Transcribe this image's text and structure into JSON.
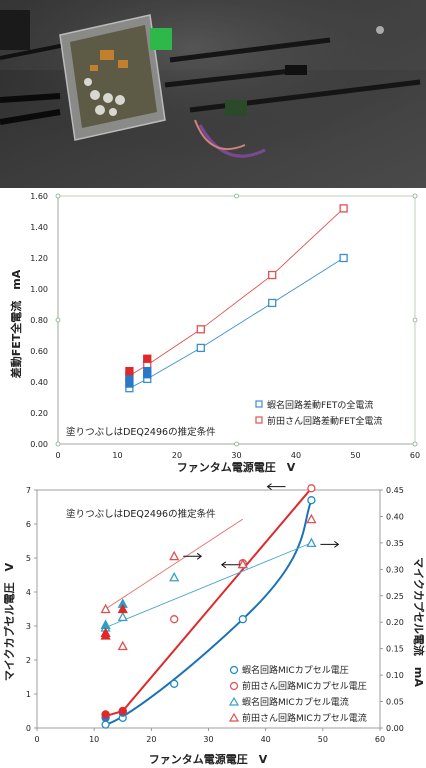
{
  "photo": {
    "description_icon": "circuit-photo"
  },
  "chart_data": [
    {
      "type": "scatter",
      "title": "",
      "xlabel": "ファンタム電源電圧　V",
      "ylabel": "差動FET全電流　mA",
      "xlim": [
        0,
        60
      ],
      "ylim": [
        0,
        1.6
      ],
      "xticks": [
        "0",
        "10",
        "20",
        "30",
        "40",
        "50",
        "60"
      ],
      "yticks": [
        "0.00",
        "0.20",
        "0.40",
        "0.60",
        "0.80",
        "1.00",
        "1.20",
        "1.40",
        "1.60"
      ],
      "grid": false,
      "annotation": "塗りつぶしはDEQ2496の推定条件",
      "legend_position": "right",
      "series": [
        {
          "name": "蝦名回路差動FETの全電流",
          "color": "#3a8fd1",
          "marker": "square-open",
          "x": [
            12,
            15,
            24,
            36,
            48
          ],
          "y": [
            0.36,
            0.42,
            0.62,
            0.91,
            1.2
          ]
        },
        {
          "name": "前田さん回路差動FET全電流",
          "color": "#e05050",
          "marker": "square-open",
          "x": [
            12,
            15,
            24,
            36,
            48
          ],
          "y": [
            0.44,
            0.51,
            0.74,
            1.09,
            1.52
          ]
        },
        {
          "name": "",
          "color": "#2a78c8",
          "marker": "square-filled",
          "x": [
            12,
            12,
            15,
            15
          ],
          "y": [
            0.39,
            0.42,
            0.45,
            0.47
          ]
        },
        {
          "name": "",
          "color": "#e02828",
          "marker": "square-filled",
          "x": [
            12,
            15
          ],
          "y": [
            0.47,
            0.55
          ]
        }
      ]
    },
    {
      "type": "scatter",
      "title": "",
      "xlabel": "ファンタム電源電圧　V",
      "ylabel": "マイクカプセル電圧　V",
      "y2label": "マイクカプセル電流　mA",
      "xlim": [
        0,
        60
      ],
      "ylim": [
        0,
        7
      ],
      "y2lim": [
        0,
        0.45
      ],
      "xticks": [
        "0",
        "10",
        "20",
        "30",
        "40",
        "50",
        "60"
      ],
      "yticks": [
        "0",
        "1",
        "2",
        "3",
        "4",
        "5",
        "6",
        "7"
      ],
      "y2ticks": [
        "0.00",
        "0.05",
        "0.10",
        "0.15",
        "0.20",
        "0.25",
        "0.30",
        "0.35",
        "0.40",
        "0.45"
      ],
      "grid": false,
      "annotation": "塗りつぶしはDEQ2496の推定条件",
      "legend_position": "bottom-right",
      "series": [
        {
          "name": "蝦名回路MICカプセル電圧",
          "color": "#1e88c8",
          "marker": "circle-open",
          "axis": "left",
          "x": [
            12,
            15,
            24,
            36,
            48
          ],
          "y": [
            0.1,
            0.3,
            1.3,
            3.2,
            6.7
          ]
        },
        {
          "name": "前田さん回路MICカプセル電圧",
          "color": "#e05050",
          "marker": "circle-open",
          "axis": "left",
          "x": [
            12,
            15,
            24,
            36,
            48
          ],
          "y": [
            0.35,
            0.5,
            3.2,
            4.85,
            7.05
          ]
        },
        {
          "name": "蝦名回路MICカプセル電流",
          "color": "#3aa0c8",
          "marker": "triangle-open",
          "axis": "right",
          "x": [
            12,
            15,
            24,
            36,
            48
          ],
          "y": [
            0.19,
            0.21,
            0.285,
            0.31,
            0.35
          ]
        },
        {
          "name": "前田さん回路MICカプセル電流",
          "color": "#e05050",
          "marker": "triangle-open",
          "axis": "right",
          "x": [
            12,
            15,
            24,
            36,
            48
          ],
          "y": [
            0.225,
            0.155,
            0.325,
            0.31,
            0.395
          ]
        },
        {
          "name": "",
          "color": "#2a78c8",
          "marker": "circle-filled",
          "axis": "left",
          "x": [
            12,
            15
          ],
          "y": [
            0.3,
            0.45
          ]
        },
        {
          "name": "",
          "color": "#e02828",
          "marker": "circle-filled",
          "axis": "left",
          "x": [
            12,
            15
          ],
          "y": [
            0.4,
            0.5
          ]
        },
        {
          "name": "",
          "color": "#2aa0c8",
          "marker": "triangle-filled",
          "axis": "right",
          "x": [
            12,
            15
          ],
          "y": [
            0.195,
            0.235
          ]
        },
        {
          "name": "",
          "color": "#e02828",
          "marker": "triangle-filled",
          "axis": "right",
          "x": [
            12,
            12,
            15
          ],
          "y": [
            0.175,
            0.18,
            0.225
          ]
        }
      ],
      "fit_lines": [
        {
          "series_ref": 0,
          "color": "#1a72b8"
        },
        {
          "series_ref": 1,
          "color": "#dd2a2a"
        },
        {
          "series_ref": 2,
          "color": "#4aa6d0"
        },
        {
          "series_ref": 3,
          "color": "#e86a6a"
        }
      ],
      "arrows": [
        {
          "label": "arrow-right-current-red",
          "at": [
            24,
            5.05
          ],
          "dir": "right"
        },
        {
          "label": "arrow-right-current-blue",
          "at": [
            48,
            5.4
          ],
          "dir": "right"
        },
        {
          "label": "arrow-left-voltage-red",
          "at": [
            44,
            7.1
          ],
          "dir": "left"
        },
        {
          "label": "arrow-left-voltage-blue",
          "at": [
            36,
            4.8
          ],
          "dir": "left"
        }
      ]
    }
  ]
}
